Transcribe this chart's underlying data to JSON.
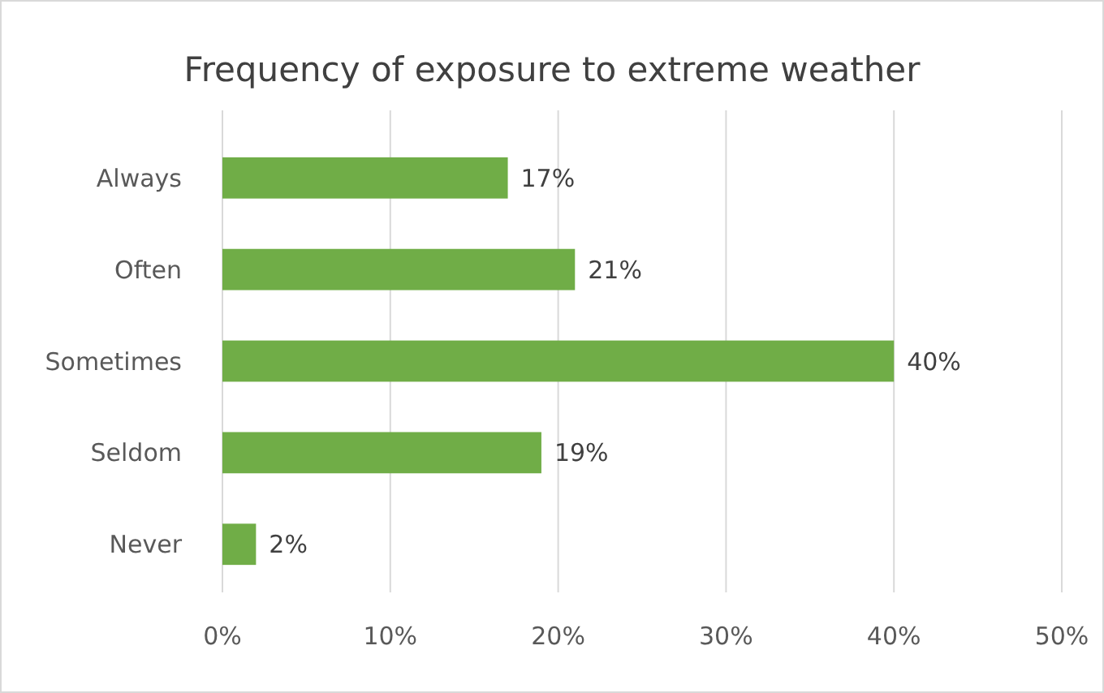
{
  "chart_data": {
    "type": "bar",
    "orientation": "horizontal",
    "title": "Frequency of exposure to extreme weather",
    "categories": [
      "Always",
      "Often",
      "Sometimes",
      "Seldom",
      "Never"
    ],
    "values": [
      17,
      21,
      40,
      19,
      2
    ],
    "value_labels": [
      "17%",
      "21%",
      "40%",
      "19%",
      "2%"
    ],
    "color": "#70ad47",
    "xlim": [
      0,
      50
    ],
    "xticks": [
      {
        "value": 0,
        "label": "0%"
      },
      {
        "value": 10,
        "label": "10%"
      },
      {
        "value": 20,
        "label": "20%"
      },
      {
        "value": 30,
        "label": "30%"
      },
      {
        "value": 40,
        "label": "40%"
      },
      {
        "value": 50,
        "label": "50%"
      }
    ],
    "grid": "x"
  }
}
